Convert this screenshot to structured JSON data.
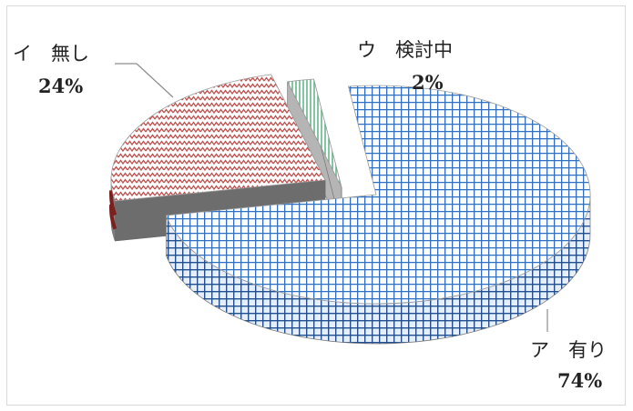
{
  "chart_data": {
    "type": "pie",
    "style": "3d-exploded",
    "slices": [
      {
        "key": "yes",
        "label": "ア　有り",
        "percent_label": "74%",
        "value": 74,
        "color": "#2e6fc1",
        "pattern": "grid"
      },
      {
        "key": "no",
        "label": "イ　無し",
        "percent_label": "24%",
        "value": 24,
        "color": "#c0504d",
        "pattern": "zigzag"
      },
      {
        "key": "considering",
        "label": "ウ　検討中",
        "percent_label": "2%",
        "value": 2,
        "color": "#4fae7a",
        "pattern": "vertical-lines"
      }
    ],
    "legend": "none"
  }
}
